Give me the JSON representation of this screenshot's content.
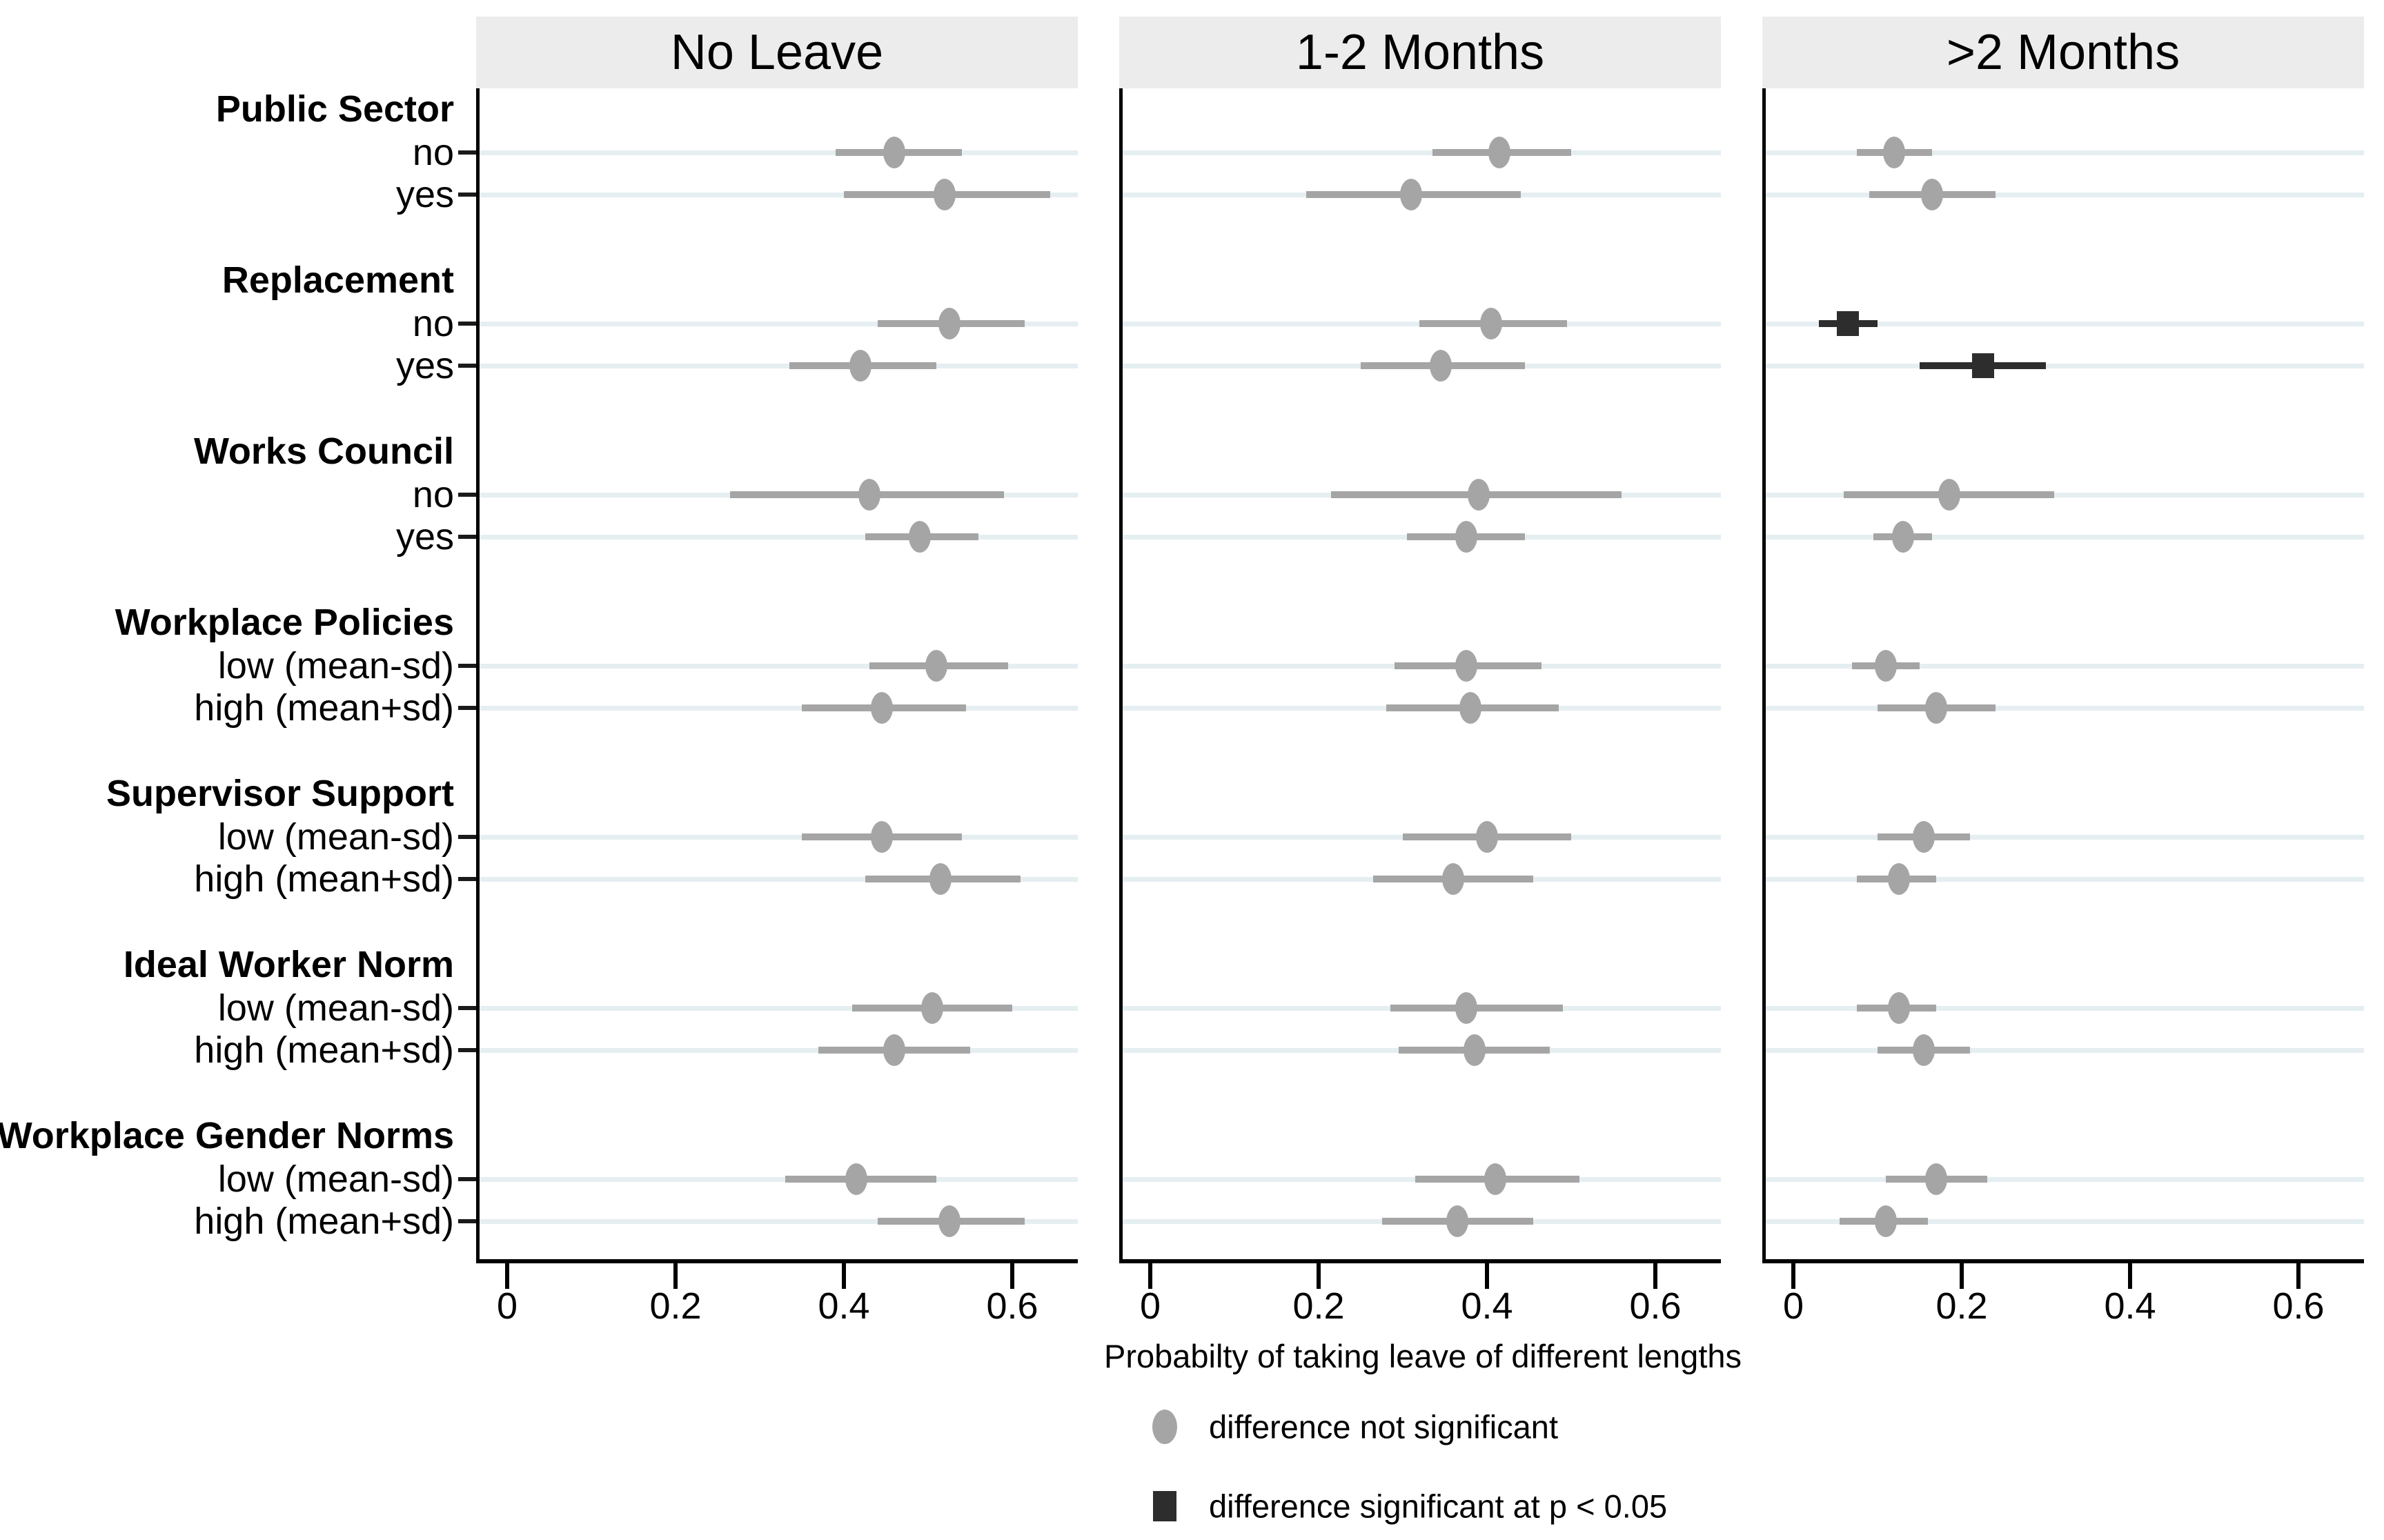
{
  "chart_data": {
    "type": "scatter",
    "variant": "dot-and-interval coefficient plot, 3 horizontal facets",
    "xlabel": "Probabilty of taking leave of different lengths",
    "x_ticks": [
      0,
      0.2,
      0.4,
      0.6
    ],
    "x_tick_labels": [
      "0",
      "0.2",
      "0.4",
      "0.6"
    ],
    "xlim": [
      -0.04,
      0.68
    ],
    "grid": "horizontal light rows at each category",
    "legend_position": "bottom center",
    "legend": [
      {
        "marker": "circle",
        "label": "difference not significant"
      },
      {
        "marker": "square",
        "label": "difference significant at p < 0.05"
      }
    ],
    "groups": [
      {
        "label": "Public Sector",
        "rows": [
          "no",
          "yes"
        ]
      },
      {
        "label": "Replacement",
        "rows": [
          "no",
          "yes"
        ]
      },
      {
        "label": "Works Council",
        "rows": [
          "no",
          "yes"
        ]
      },
      {
        "label": "Workplace Policies",
        "rows": [
          "low (mean-sd)",
          "high (mean+sd)"
        ]
      },
      {
        "label": "Supervisor Support",
        "rows": [
          "low (mean-sd)",
          "high (mean+sd)"
        ]
      },
      {
        "label": "Ideal Worker Norm",
        "rows": [
          "low (mean-sd)",
          "high (mean+sd)"
        ]
      },
      {
        "label": "Workplace Gender Norms",
        "rows": [
          "low (mean-sd)",
          "high (mean+sd)"
        ]
      }
    ],
    "panels": [
      {
        "title": "No Leave",
        "points": [
          {
            "group": "Public Sector",
            "row": "no",
            "value": 0.46,
            "ci": [
              0.39,
              0.54
            ],
            "significant": false
          },
          {
            "group": "Public Sector",
            "row": "yes",
            "value": 0.52,
            "ci": [
              0.4,
              0.645
            ],
            "significant": false
          },
          {
            "group": "Replacement",
            "row": "no",
            "value": 0.525,
            "ci": [
              0.44,
              0.615
            ],
            "significant": false
          },
          {
            "group": "Replacement",
            "row": "yes",
            "value": 0.42,
            "ci": [
              0.335,
              0.51
            ],
            "significant": false
          },
          {
            "group": "Works Council",
            "row": "no",
            "value": 0.43,
            "ci": [
              0.265,
              0.59
            ],
            "significant": false
          },
          {
            "group": "Works Council",
            "row": "yes",
            "value": 0.49,
            "ci": [
              0.425,
              0.56
            ],
            "significant": false
          },
          {
            "group": "Workplace Policies",
            "row": "low (mean-sd)",
            "value": 0.51,
            "ci": [
              0.43,
              0.595
            ],
            "significant": false
          },
          {
            "group": "Workplace Policies",
            "row": "high (mean+sd)",
            "value": 0.445,
            "ci": [
              0.35,
              0.545
            ],
            "significant": false
          },
          {
            "group": "Supervisor Support",
            "row": "low (mean-sd)",
            "value": 0.445,
            "ci": [
              0.35,
              0.54
            ],
            "significant": false
          },
          {
            "group": "Supervisor Support",
            "row": "high (mean+sd)",
            "value": 0.515,
            "ci": [
              0.425,
              0.61
            ],
            "significant": false
          },
          {
            "group": "Ideal Worker Norm",
            "row": "low (mean-sd)",
            "value": 0.505,
            "ci": [
              0.41,
              0.6
            ],
            "significant": false
          },
          {
            "group": "Ideal Worker Norm",
            "row": "high (mean+sd)",
            "value": 0.46,
            "ci": [
              0.37,
              0.55
            ],
            "significant": false
          },
          {
            "group": "Workplace Gender Norms",
            "row": "low (mean-sd)",
            "value": 0.415,
            "ci": [
              0.33,
              0.51
            ],
            "significant": false
          },
          {
            "group": "Workplace Gender Norms",
            "row": "high (mean+sd)",
            "value": 0.525,
            "ci": [
              0.44,
              0.615
            ],
            "significant": false
          }
        ]
      },
      {
        "title": "1-2 Months",
        "points": [
          {
            "group": "Public Sector",
            "row": "no",
            "value": 0.415,
            "ci": [
              0.335,
              0.5
            ],
            "significant": false
          },
          {
            "group": "Public Sector",
            "row": "yes",
            "value": 0.31,
            "ci": [
              0.185,
              0.44
            ],
            "significant": false
          },
          {
            "group": "Replacement",
            "row": "no",
            "value": 0.405,
            "ci": [
              0.32,
              0.495
            ],
            "significant": false
          },
          {
            "group": "Replacement",
            "row": "yes",
            "value": 0.345,
            "ci": [
              0.25,
              0.445
            ],
            "significant": false
          },
          {
            "group": "Works Council",
            "row": "no",
            "value": 0.39,
            "ci": [
              0.215,
              0.56
            ],
            "significant": false
          },
          {
            "group": "Works Council",
            "row": "yes",
            "value": 0.375,
            "ci": [
              0.305,
              0.445
            ],
            "significant": false
          },
          {
            "group": "Workplace Policies",
            "row": "low (mean-sd)",
            "value": 0.375,
            "ci": [
              0.29,
              0.465
            ],
            "significant": false
          },
          {
            "group": "Workplace Policies",
            "row": "high (mean+sd)",
            "value": 0.38,
            "ci": [
              0.28,
              0.485
            ],
            "significant": false
          },
          {
            "group": "Supervisor Support",
            "row": "low (mean-sd)",
            "value": 0.4,
            "ci": [
              0.3,
              0.5
            ],
            "significant": false
          },
          {
            "group": "Supervisor Support",
            "row": "high (mean+sd)",
            "value": 0.36,
            "ci": [
              0.265,
              0.455
            ],
            "significant": false
          },
          {
            "group": "Ideal Worker Norm",
            "row": "low (mean-sd)",
            "value": 0.375,
            "ci": [
              0.285,
              0.49
            ],
            "significant": false
          },
          {
            "group": "Ideal Worker Norm",
            "row": "high (mean+sd)",
            "value": 0.385,
            "ci": [
              0.295,
              0.475
            ],
            "significant": false
          },
          {
            "group": "Workplace Gender Norms",
            "row": "low (mean-sd)",
            "value": 0.41,
            "ci": [
              0.315,
              0.51
            ],
            "significant": false
          },
          {
            "group": "Workplace Gender Norms",
            "row": "high (mean+sd)",
            "value": 0.365,
            "ci": [
              0.275,
              0.455
            ],
            "significant": false
          }
        ]
      },
      {
        "title": ">2 Months",
        "points": [
          {
            "group": "Public Sector",
            "row": "no",
            "value": 0.12,
            "ci": [
              0.075,
              0.165
            ],
            "significant": false
          },
          {
            "group": "Public Sector",
            "row": "yes",
            "value": 0.165,
            "ci": [
              0.09,
              0.24
            ],
            "significant": false
          },
          {
            "group": "Replacement",
            "row": "no",
            "value": 0.065,
            "ci": [
              0.03,
              0.1
            ],
            "significant": true
          },
          {
            "group": "Replacement",
            "row": "yes",
            "value": 0.225,
            "ci": [
              0.15,
              0.3
            ],
            "significant": true
          },
          {
            "group": "Works Council",
            "row": "no",
            "value": 0.185,
            "ci": [
              0.06,
              0.31
            ],
            "significant": false
          },
          {
            "group": "Works Council",
            "row": "yes",
            "value": 0.13,
            "ci": [
              0.095,
              0.165
            ],
            "significant": false
          },
          {
            "group": "Workplace Policies",
            "row": "low (mean-sd)",
            "value": 0.11,
            "ci": [
              0.07,
              0.15
            ],
            "significant": false
          },
          {
            "group": "Workplace Policies",
            "row": "high (mean+sd)",
            "value": 0.17,
            "ci": [
              0.1,
              0.24
            ],
            "significant": false
          },
          {
            "group": "Supervisor Support",
            "row": "low (mean-sd)",
            "value": 0.155,
            "ci": [
              0.1,
              0.21
            ],
            "significant": false
          },
          {
            "group": "Supervisor Support",
            "row": "high (mean+sd)",
            "value": 0.125,
            "ci": [
              0.075,
              0.17
            ],
            "significant": false
          },
          {
            "group": "Ideal Worker Norm",
            "row": "low (mean-sd)",
            "value": 0.125,
            "ci": [
              0.075,
              0.17
            ],
            "significant": false
          },
          {
            "group": "Ideal Worker Norm",
            "row": "high (mean+sd)",
            "value": 0.155,
            "ci": [
              0.1,
              0.21
            ],
            "significant": false
          },
          {
            "group": "Workplace Gender Norms",
            "row": "low (mean-sd)",
            "value": 0.17,
            "ci": [
              0.11,
              0.23
            ],
            "significant": false
          },
          {
            "group": "Workplace Gender Norms",
            "row": "high (mean+sd)",
            "value": 0.11,
            "ci": [
              0.055,
              0.16
            ],
            "significant": false
          }
        ]
      }
    ],
    "colors": {
      "not_significant_marker": "#a5a5a5",
      "significant_marker": "#2d2d2d",
      "facet_header_background": "#ececec",
      "gridline": "#e5eef1",
      "axis": "#000000",
      "text": "#000000"
    }
  }
}
